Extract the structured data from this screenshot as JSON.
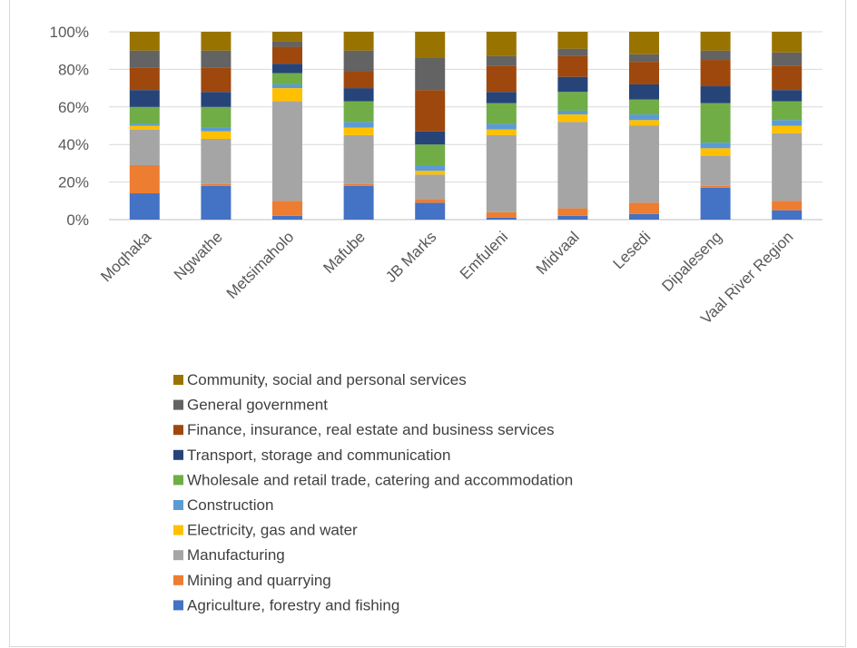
{
  "chart_data": {
    "type": "bar",
    "stacked": true,
    "percent": true,
    "categories": [
      "Moqhaka",
      "Ngwathe",
      "Metsimaholo",
      "Mafube",
      "JB Marks",
      "Emfuleni",
      "Midvaal",
      "Lesedi",
      "Dipaleseng",
      "Vaal River Region"
    ],
    "yticks": [
      "0%",
      "20%",
      "40%",
      "60%",
      "80%",
      "100%"
    ],
    "ylim": [
      0,
      100
    ],
    "legend_position": "bottom",
    "series": [
      {
        "name": " Agriculture, forestry and fishing",
        "color": "#4472C4",
        "values": [
          14,
          18,
          2,
          18,
          9,
          1,
          2,
          3,
          17,
          5
        ]
      },
      {
        "name": "Mining and quarrying",
        "color": "#ED7D31",
        "values": [
          15,
          1,
          8,
          1,
          2,
          3,
          4,
          6,
          1,
          5
        ]
      },
      {
        "name": "Manufacturing",
        "color": "#A5A5A5",
        "values": [
          19,
          24,
          53,
          26,
          13,
          41,
          46,
          41,
          16,
          36
        ]
      },
      {
        "name": "Electricity, gas and water",
        "color": "#FFC000",
        "values": [
          2,
          4,
          7,
          4,
          2,
          3,
          4,
          3,
          4,
          4
        ]
      },
      {
        "name": " Construction",
        "color": "#5B9BD5",
        "values": [
          1,
          2,
          2,
          3,
          3,
          3,
          2,
          3,
          3,
          3
        ]
      },
      {
        "name": "Wholesale and retail trade, catering and accommodation",
        "color": "#70AD47",
        "values": [
          9,
          11,
          6,
          11,
          11,
          11,
          10,
          8,
          21,
          10
        ]
      },
      {
        "name": "Transport, storage and communication",
        "color": "#264478",
        "values": [
          9,
          8,
          5,
          7,
          7,
          6,
          8,
          8,
          9,
          6
        ]
      },
      {
        "name": "Finance, insurance, real estate and business services",
        "color": "#9E480E",
        "values": [
          12,
          13,
          9,
          9,
          22,
          14,
          11,
          12,
          14,
          13
        ]
      },
      {
        "name": "General government",
        "color": "#636363",
        "values": [
          9,
          9,
          3,
          11,
          17,
          5,
          4,
          4,
          5,
          7
        ]
      },
      {
        "name": "Community, social and personal services",
        "color": "#997300",
        "values": [
          10,
          10,
          5,
          10,
          14,
          13,
          9,
          12,
          10,
          11
        ]
      }
    ]
  }
}
